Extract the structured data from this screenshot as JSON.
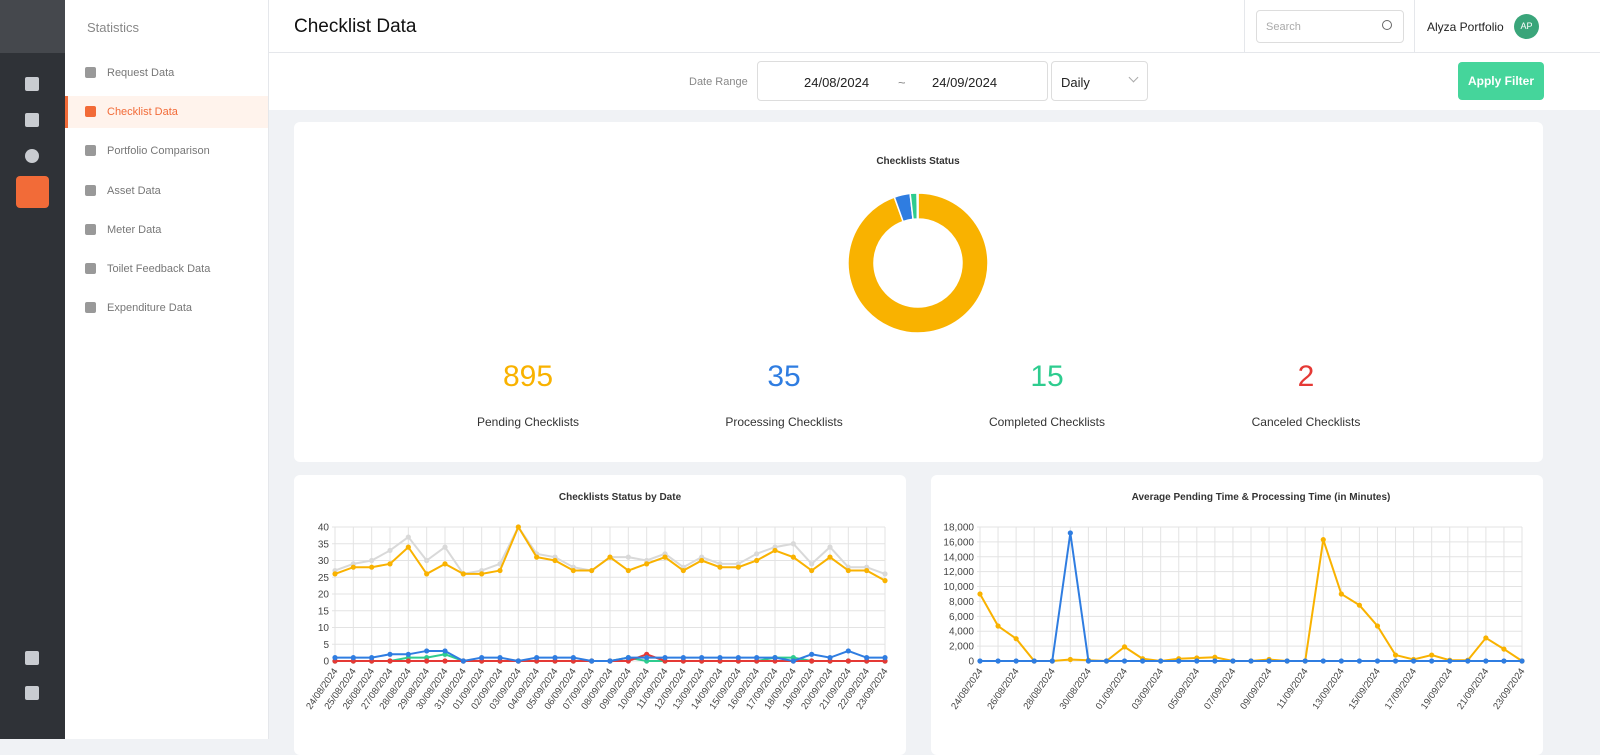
{
  "sidebar": {
    "title": "Statistics",
    "active_index": 1,
    "items": [
      "Request Data",
      "Checklist Data",
      "Portfolio Comparison",
      "Asset Data",
      "Meter Data",
      "Toilet Feedback Data",
      "Expenditure Data"
    ]
  },
  "header": {
    "title": "Checklist Data",
    "search_placeholder": "Search",
    "user": "Alyza Portfolio",
    "avatar": "AP"
  },
  "filter": {
    "label": "Date Range",
    "start": "24/08/2024",
    "separator": "~",
    "end": "24/09/2024",
    "period": "Daily",
    "button": "Apply Filter"
  },
  "chart_data": [
    {
      "type": "donut",
      "title": "Checklists Status",
      "categories": [
        "Pending Checklists",
        "Processing Checklists",
        "Completed Checklists",
        "Canceled Checklists"
      ],
      "values": [
        895,
        35,
        15,
        2
      ],
      "colors": [
        "#f9b200",
        "#2f7de1",
        "#2ecc8f",
        "#e53935"
      ]
    },
    {
      "type": "line",
      "title": "Checklists Status by Date",
      "categories": [
        "24/08/2024",
        "25/08/2024",
        "26/08/2024",
        "27/08/2024",
        "28/08/2024",
        "29/08/2024",
        "30/08/2024",
        "31/08/2024",
        "01/09/2024",
        "02/09/2024",
        "03/09/2024",
        "04/09/2024",
        "05/09/2024",
        "06/09/2024",
        "07/09/2024",
        "08/09/2024",
        "09/09/2024",
        "10/09/2024",
        "11/09/2024",
        "12/09/2024",
        "13/09/2024",
        "14/09/2024",
        "15/09/2024",
        "16/09/2024",
        "17/09/2024",
        "18/09/2024",
        "19/09/2024",
        "20/09/2024",
        "21/09/2024",
        "22/09/2024",
        "23/09/2024"
      ],
      "ylim": [
        0,
        40
      ],
      "yticks": [
        0,
        5,
        10,
        15,
        20,
        25,
        30,
        35,
        40
      ],
      "grid": true,
      "series": [
        {
          "color": "#d9d9d9",
          "values": [
            27,
            29,
            30,
            33,
            37,
            30,
            34,
            26,
            27,
            29,
            40,
            32,
            31,
            28,
            27,
            31,
            31,
            30,
            32,
            28,
            31,
            29,
            29,
            32,
            34,
            35,
            29,
            34,
            28,
            28,
            26
          ]
        },
        {
          "color": "#f9b200",
          "values": [
            26,
            28,
            28,
            29,
            34,
            26,
            29,
            26,
            26,
            27,
            40,
            31,
            30,
            27,
            27,
            31,
            27,
            29,
            31,
            27,
            30,
            28,
            28,
            30,
            33,
            31,
            27,
            31,
            27,
            27,
            24
          ]
        },
        {
          "color": "#2ecc8f",
          "values": [
            0,
            0,
            0,
            0,
            1,
            1,
            2,
            0,
            0,
            0,
            0,
            0,
            0,
            0,
            0,
            0,
            1,
            0,
            0,
            0,
            0,
            0,
            0,
            0,
            1,
            1,
            0,
            0,
            0,
            0,
            0
          ]
        },
        {
          "color": "#e53935",
          "values": [
            0,
            0,
            0,
            0,
            0,
            0,
            0,
            0,
            0,
            0,
            0,
            0,
            0,
            0,
            0,
            0,
            0,
            2,
            0,
            0,
            0,
            0,
            0,
            0,
            0,
            0,
            0,
            0,
            0,
            0,
            0
          ]
        },
        {
          "color": "#2f7de1",
          "values": [
            1,
            1,
            1,
            2,
            2,
            3,
            3,
            0,
            1,
            1,
            0,
            1,
            1,
            1,
            0,
            0,
            1,
            1,
            1,
            1,
            1,
            1,
            1,
            1,
            1,
            0,
            2,
            1,
            3,
            1,
            1
          ]
        }
      ]
    },
    {
      "type": "line",
      "title": "Average Pending Time & Processing Time (in Minutes)",
      "categories": [
        "24/08/2024",
        null,
        "26/08/2024",
        null,
        "28/08/2024",
        null,
        "30/08/2024",
        null,
        "01/09/2024",
        null,
        "03/09/2024",
        null,
        "05/09/2024",
        null,
        "07/09/2024",
        null,
        "09/09/2024",
        null,
        "11/09/2024",
        null,
        "13/09/2024",
        null,
        "15/09/2024",
        null,
        "17/09/2024",
        null,
        "19/09/2024",
        null,
        "21/09/2024",
        null,
        "23/09/2024"
      ],
      "ylim": [
        0,
        18000
      ],
      "yticks": [
        0,
        {
          "value": 2000,
          "label": "2,000"
        },
        {
          "value": 4000,
          "label": "4,000"
        },
        {
          "value": 6000,
          "label": "6,000"
        },
        {
          "value": 8000,
          "label": "8,000"
        },
        {
          "value": 10000,
          "label": "10,000"
        },
        {
          "value": 12000,
          "label": "12,000"
        },
        {
          "value": 14000,
          "label": "14,000"
        },
        {
          "value": 16000,
          "label": "16,000"
        },
        {
          "value": 18000,
          "label": "18,000"
        }
      ],
      "grid": true,
      "series": [
        {
          "color": "#f9b200",
          "values": [
            9000,
            4700,
            3000,
            0,
            0,
            200,
            100,
            0,
            1900,
            300,
            0,
            300,
            400,
            500,
            0,
            0,
            200,
            0,
            0,
            16300,
            9000,
            7500,
            4700,
            800,
            200,
            800,
            100,
            100,
            3100,
            1600,
            0
          ]
        },
        {
          "color": "#2f7de1",
          "values": [
            0,
            0,
            0,
            0,
            0,
            17200,
            0,
            0,
            0,
            0,
            0,
            0,
            0,
            0,
            0,
            0,
            0,
            0,
            0,
            0,
            0,
            0,
            0,
            0,
            0,
            0,
            0,
            0,
            0,
            0,
            0
          ]
        }
      ]
    }
  ]
}
